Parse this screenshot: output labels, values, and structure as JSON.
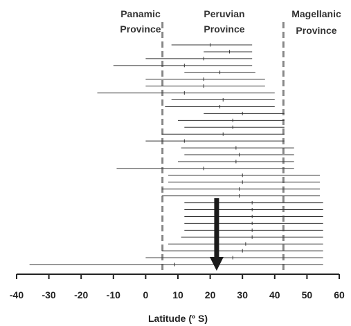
{
  "chart_data": {
    "type": "range",
    "xlabel": "Latitude (º S)",
    "xlim": [
      -40,
      60
    ],
    "xticks": [
      -40,
      -30,
      -20,
      -10,
      0,
      10,
      20,
      30,
      40,
      50,
      60
    ],
    "boundaries": [
      {
        "x": 5.2,
        "label_lines": [
          "Panamic",
          "Province"
        ]
      },
      {
        "x": 42.7,
        "label_lines": [
          "Magellanic",
          "Province"
        ]
      }
    ],
    "middle_label_lines": [
      "Peruvian",
      "Province"
    ],
    "ranges": [
      {
        "start": 8,
        "end": 33,
        "mark": 20
      },
      {
        "start": 18,
        "end": 33,
        "mark": 26
      },
      {
        "start": 0,
        "end": 33,
        "mark": 18
      },
      {
        "start": -10,
        "end": 33,
        "mark": 12
      },
      {
        "start": 12,
        "end": 34,
        "mark": 23
      },
      {
        "start": 0,
        "end": 37,
        "mark": 18
      },
      {
        "start": 0,
        "end": 37,
        "mark": 18
      },
      {
        "start": -15,
        "end": 40,
        "mark": 12
      },
      {
        "start": 8,
        "end": 40,
        "mark": 24
      },
      {
        "start": 6,
        "end": 40,
        "mark": 23
      },
      {
        "start": 18,
        "end": 43,
        "mark": 30
      },
      {
        "start": 10,
        "end": 43,
        "mark": 27
      },
      {
        "start": 12,
        "end": 43,
        "mark": 27
      },
      {
        "start": 5,
        "end": 43,
        "mark": 24
      },
      {
        "start": 0,
        "end": 43,
        "mark": 12
      },
      {
        "start": 11,
        "end": 46,
        "mark": 28
      },
      {
        "start": 12,
        "end": 46,
        "mark": 29
      },
      {
        "start": 10,
        "end": 46,
        "mark": 28
      },
      {
        "start": -9,
        "end": 46,
        "mark": 18
      },
      {
        "start": 7,
        "end": 54,
        "mark": 30
      },
      {
        "start": 7,
        "end": 54,
        "mark": 30
      },
      {
        "start": 5,
        "end": 54,
        "mark": 29
      },
      {
        "start": 5,
        "end": 54,
        "mark": 29
      },
      {
        "start": 12,
        "end": 55,
        "mark": 33
      },
      {
        "start": 12,
        "end": 55,
        "mark": 33
      },
      {
        "start": 12,
        "end": 55,
        "mark": 33
      },
      {
        "start": 12,
        "end": 55,
        "mark": 33
      },
      {
        "start": 12,
        "end": 55,
        "mark": 33
      },
      {
        "start": 11,
        "end": 55,
        "mark": 33
      },
      {
        "start": 7,
        "end": 55,
        "mark": 31
      },
      {
        "start": 5,
        "end": 55,
        "mark": 30
      },
      {
        "start": 0,
        "end": 55,
        "mark": 27
      },
      {
        "start": -36,
        "end": 55,
        "mark": 9
      }
    ],
    "arrow": {
      "x": 22,
      "direction": "down"
    },
    "colors": {
      "range_line": "#333333",
      "boundary": "#888888",
      "arrow": "#1a1a1a",
      "axis": "#222222"
    }
  }
}
